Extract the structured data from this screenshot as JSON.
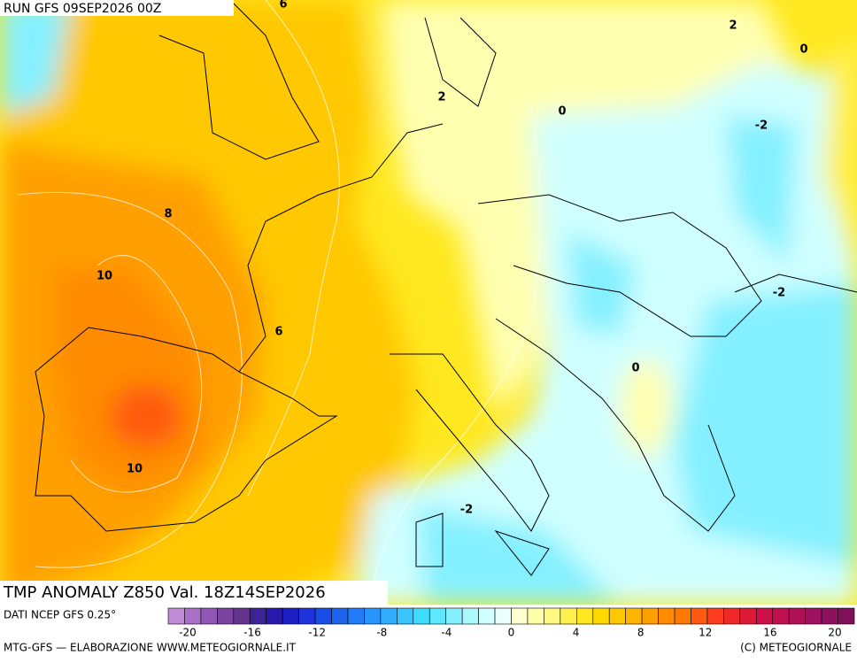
{
  "header": {
    "run": "RUN GFS 09SEP2026 00Z"
  },
  "map": {
    "title": "TMP ANOMALY Z850 Val. 18Z14SEP2026",
    "contour_labels": [
      6,
      2,
      0,
      2,
      0,
      -2,
      8,
      10,
      -2,
      6,
      0,
      10,
      -2
    ]
  },
  "legend": {
    "source": "DATI NCEP GFS 0.25°",
    "labels": [
      -20,
      -16,
      -12,
      -8,
      -4,
      0,
      4,
      8,
      12,
      16,
      20
    ],
    "colors": [
      "#c08ad6",
      "#a870c6",
      "#9058b4",
      "#7a44a0",
      "#64348c",
      "#3c2494",
      "#2a1aac",
      "#1c20c4",
      "#1e34da",
      "#1a4ce8",
      "#1e64f0",
      "#207cf8",
      "#2894ff",
      "#30acff",
      "#38c4ff",
      "#40dcff",
      "#5ce8ff",
      "#84f0ff",
      "#acf8ff",
      "#d0ffff",
      "#ecffff",
      "#ffffd0",
      "#ffffa8",
      "#fff880",
      "#fff050",
      "#ffe820",
      "#ffd800",
      "#ffc800",
      "#ffb400",
      "#ffa000",
      "#ff8c00",
      "#ff7800",
      "#ff5a10",
      "#ff3c20",
      "#f02828",
      "#e01838",
      "#d01048",
      "#c01050",
      "#b01058",
      "#a01060",
      "#901060",
      "#801058"
    ]
  },
  "footer": {
    "left": "MTG-GFS — ELABORAZIONE WWW.METEOGIORNALE.IT",
    "right": "(C) METEOGIORNALE"
  }
}
